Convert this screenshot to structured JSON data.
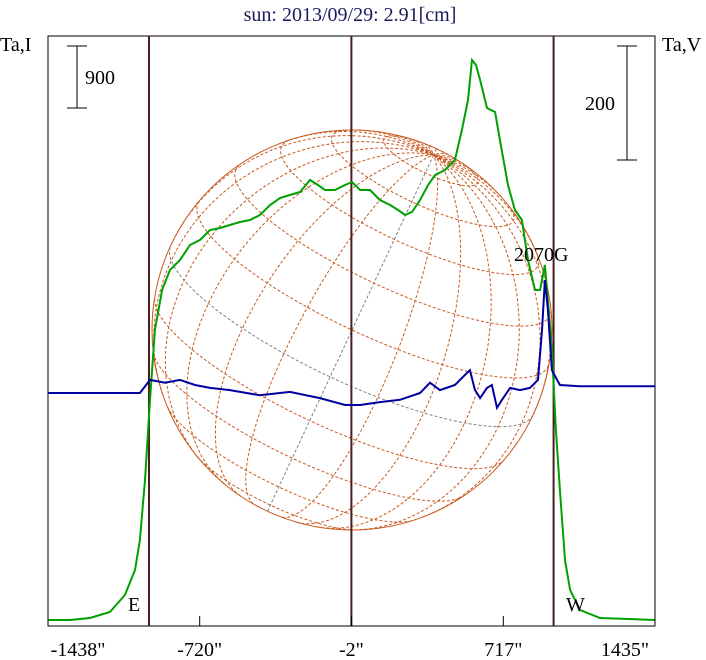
{
  "chart_data": {
    "type": "line",
    "title": "sun: 2013/09/29: 2.91[cm]",
    "ylabel_left": "Ta,I",
    "ylabel_right": "Ta,V",
    "xlim": [
      -1438,
      1435
    ],
    "x_tick_labels": [
      "-1438\"",
      "-720\"",
      "-2\"",
      "717\"",
      "1435\""
    ],
    "x_ticks": [
      -1438,
      -720,
      -2,
      717,
      1435
    ],
    "limb_markers": [
      -960,
      955
    ],
    "center_marker": -2,
    "limb_labels": {
      "east": "E",
      "west": "W"
    },
    "scale_bar_I": {
      "label": "900",
      "value": 900
    },
    "scale_bar_V": {
      "label": "200",
      "value": 200
    },
    "annotation": {
      "text": "2070G",
      "x": 905
    },
    "colors": {
      "I": "#00a000",
      "V": "#0000a0",
      "grid": "#c8581e",
      "marker": "#4a1e1e",
      "title": "#1a1a5e"
    },
    "series": [
      {
        "name": "I",
        "x": [
          -1438,
          -1334,
          -1239,
          -1145,
          -1074,
          -1026,
          -1003,
          -979,
          -955,
          -932,
          -898,
          -861,
          -813,
          -766,
          -719,
          -671,
          -624,
          -577,
          -529,
          -482,
          -435,
          -387,
          -340,
          -293,
          -245,
          -198,
          -160,
          -127,
          -80,
          -32,
          1,
          39,
          86,
          133,
          181,
          219,
          252,
          285,
          323,
          361,
          394,
          441,
          488,
          521,
          550,
          569,
          588,
          607,
          640,
          678,
          701,
          739,
          772,
          805,
          834,
          867,
          891,
          914,
          928,
          947,
          966,
          985,
          1009,
          1033,
          1080,
          1175,
          1435
        ],
        "y": [
          0,
          0,
          29,
          116,
          363,
          726,
          1162,
          2033,
          3194,
          4211,
          4792,
          5082,
          5227,
          5445,
          5518,
          5663,
          5692,
          5735,
          5779,
          5808,
          5881,
          6026,
          6127,
          6171,
          6215,
          6389,
          6316,
          6244,
          6244,
          6316,
          6360,
          6244,
          6244,
          6098,
          6026,
          5953,
          5881,
          5924,
          6098,
          6316,
          6461,
          6534,
          6679,
          7115,
          7550,
          8131,
          8059,
          7841,
          7434,
          7376,
          6970,
          6316,
          5953,
          5808,
          5227,
          4792,
          4792,
          5155,
          4646,
          3920,
          2759,
          1888,
          871,
          436,
          145,
          29,
          0
        ]
      },
      {
        "name": "V",
        "x": [
          -1438,
          -1003,
          -955,
          -884,
          -813,
          -742,
          -671,
          -577,
          -435,
          -293,
          -151,
          -32,
          39,
          133,
          228,
          323,
          370,
          417,
          488,
          536,
          559,
          583,
          607,
          640,
          663,
          687,
          711,
          749,
          796,
          843,
          881,
          900,
          914,
          928,
          947,
          985,
          1080,
          1435
        ],
        "y": [
          0,
          0,
          23,
          18,
          23,
          14,
          9,
          5,
          -4,
          2,
          -9,
          -21,
          -21,
          -16,
          -12,
          0,
          18,
          5,
          14,
          32,
          40,
          5,
          -9,
          9,
          14,
          -26,
          -12,
          9,
          5,
          9,
          23,
          110,
          198,
          146,
          40,
          14,
          12,
          12
        ]
      }
    ]
  }
}
